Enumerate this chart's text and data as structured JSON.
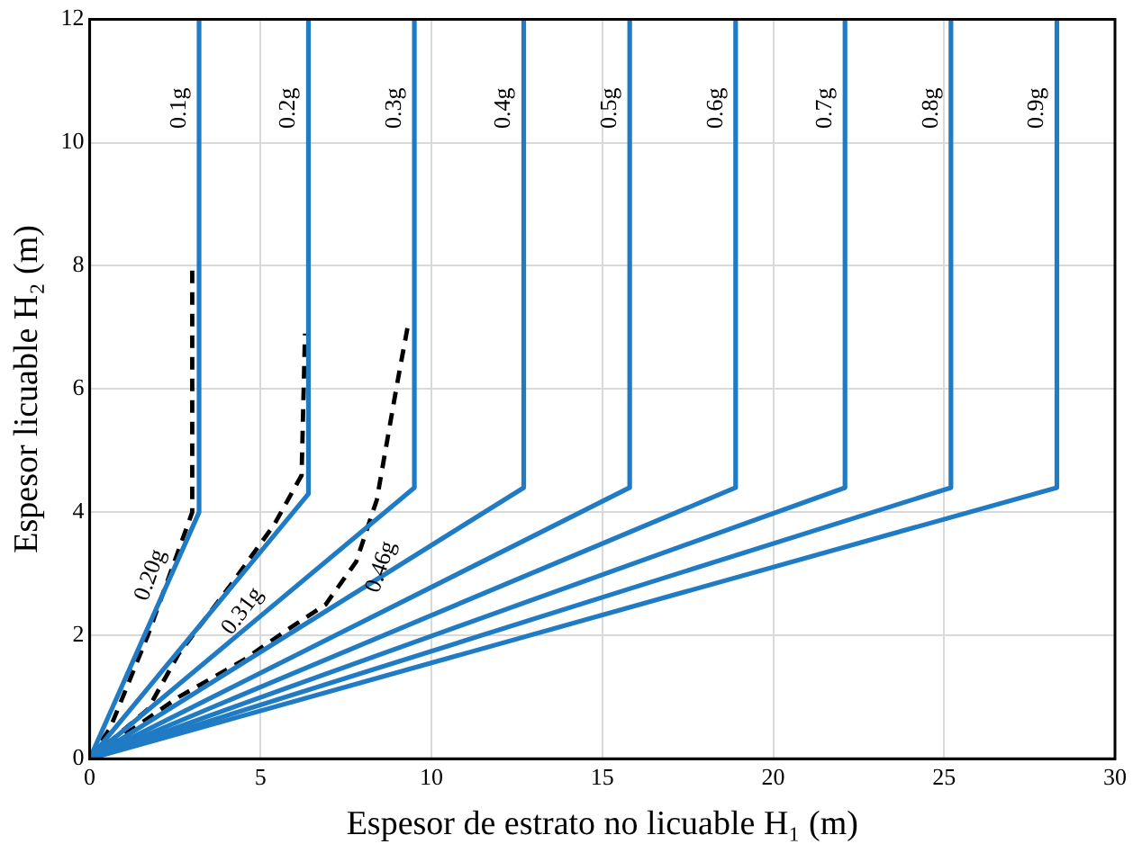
{
  "chart_data": {
    "type": "line",
    "xlabel": "Espesor de estrato no licuable H₁ (m)",
    "ylabel": "Espesor licuable H₂ (m)",
    "xlim": [
      0,
      30
    ],
    "xticks": [
      0,
      5,
      10,
      15,
      20,
      25,
      30
    ],
    "ylim": [
      0,
      12
    ],
    "yticks": [
      0,
      2,
      4,
      6,
      8,
      10,
      12
    ],
    "grid": true,
    "legend": false,
    "marker": "none",
    "series": [
      {
        "name": "0.1g",
        "color": "#1f7bc4",
        "x": [
          0,
          3.2,
          3.2
        ],
        "values": [
          0,
          4.0,
          12
        ]
      },
      {
        "name": "0.2g",
        "color": "#1f7bc4",
        "x": [
          0,
          6.4,
          6.4
        ],
        "values": [
          0,
          4.3,
          12
        ]
      },
      {
        "name": "0.3g",
        "color": "#1f7bc4",
        "x": [
          0,
          9.5,
          9.5
        ],
        "values": [
          0,
          4.4,
          12
        ]
      },
      {
        "name": "0.4g",
        "color": "#1f7bc4",
        "x": [
          0,
          12.7,
          12.7
        ],
        "values": [
          0,
          4.4,
          12
        ]
      },
      {
        "name": "0.5g",
        "color": "#1f7bc4",
        "x": [
          0,
          15.8,
          15.8
        ],
        "values": [
          0,
          4.4,
          12
        ]
      },
      {
        "name": "0.6g",
        "color": "#1f7bc4",
        "x": [
          0,
          18.9,
          18.9
        ],
        "values": [
          0,
          4.4,
          12
        ]
      },
      {
        "name": "0.7g",
        "color": "#1f7bc4",
        "x": [
          0,
          22.1,
          22.1
        ],
        "values": [
          0,
          4.4,
          12
        ]
      },
      {
        "name": "0.8g",
        "color": "#1f7bc4",
        "x": [
          0,
          25.2,
          25.2
        ],
        "values": [
          0,
          4.4,
          12
        ]
      },
      {
        "name": "0.9g",
        "color": "#1f7bc4",
        "x": [
          0,
          28.3,
          28.3
        ],
        "values": [
          0,
          4.4,
          12
        ]
      },
      {
        "name": "0.20g",
        "color": "#000000",
        "line_style": "dashed",
        "x": [
          0,
          0.6,
          1.7,
          3.0,
          3.0
        ],
        "values": [
          0,
          0.5,
          2.0,
          4.0,
          8.0
        ]
      },
      {
        "name": "0.31g",
        "color": "#000000",
        "line_style": "dashed",
        "x": [
          0,
          1.7,
          2.6,
          4.1,
          5.4,
          6.2,
          6.3
        ],
        "values": [
          0,
          0.8,
          1.7,
          2.8,
          3.8,
          4.6,
          6.9
        ]
      },
      {
        "name": "0.46g",
        "color": "#000000",
        "line_style": "dashed",
        "x": [
          0,
          2.6,
          4.5,
          5.8,
          6.9,
          7.8,
          8.4,
          9.0,
          9.3
        ],
        "values": [
          0,
          1.0,
          1.6,
          2.1,
          2.5,
          3.2,
          4.2,
          6.1,
          7.0
        ]
      }
    ]
  }
}
